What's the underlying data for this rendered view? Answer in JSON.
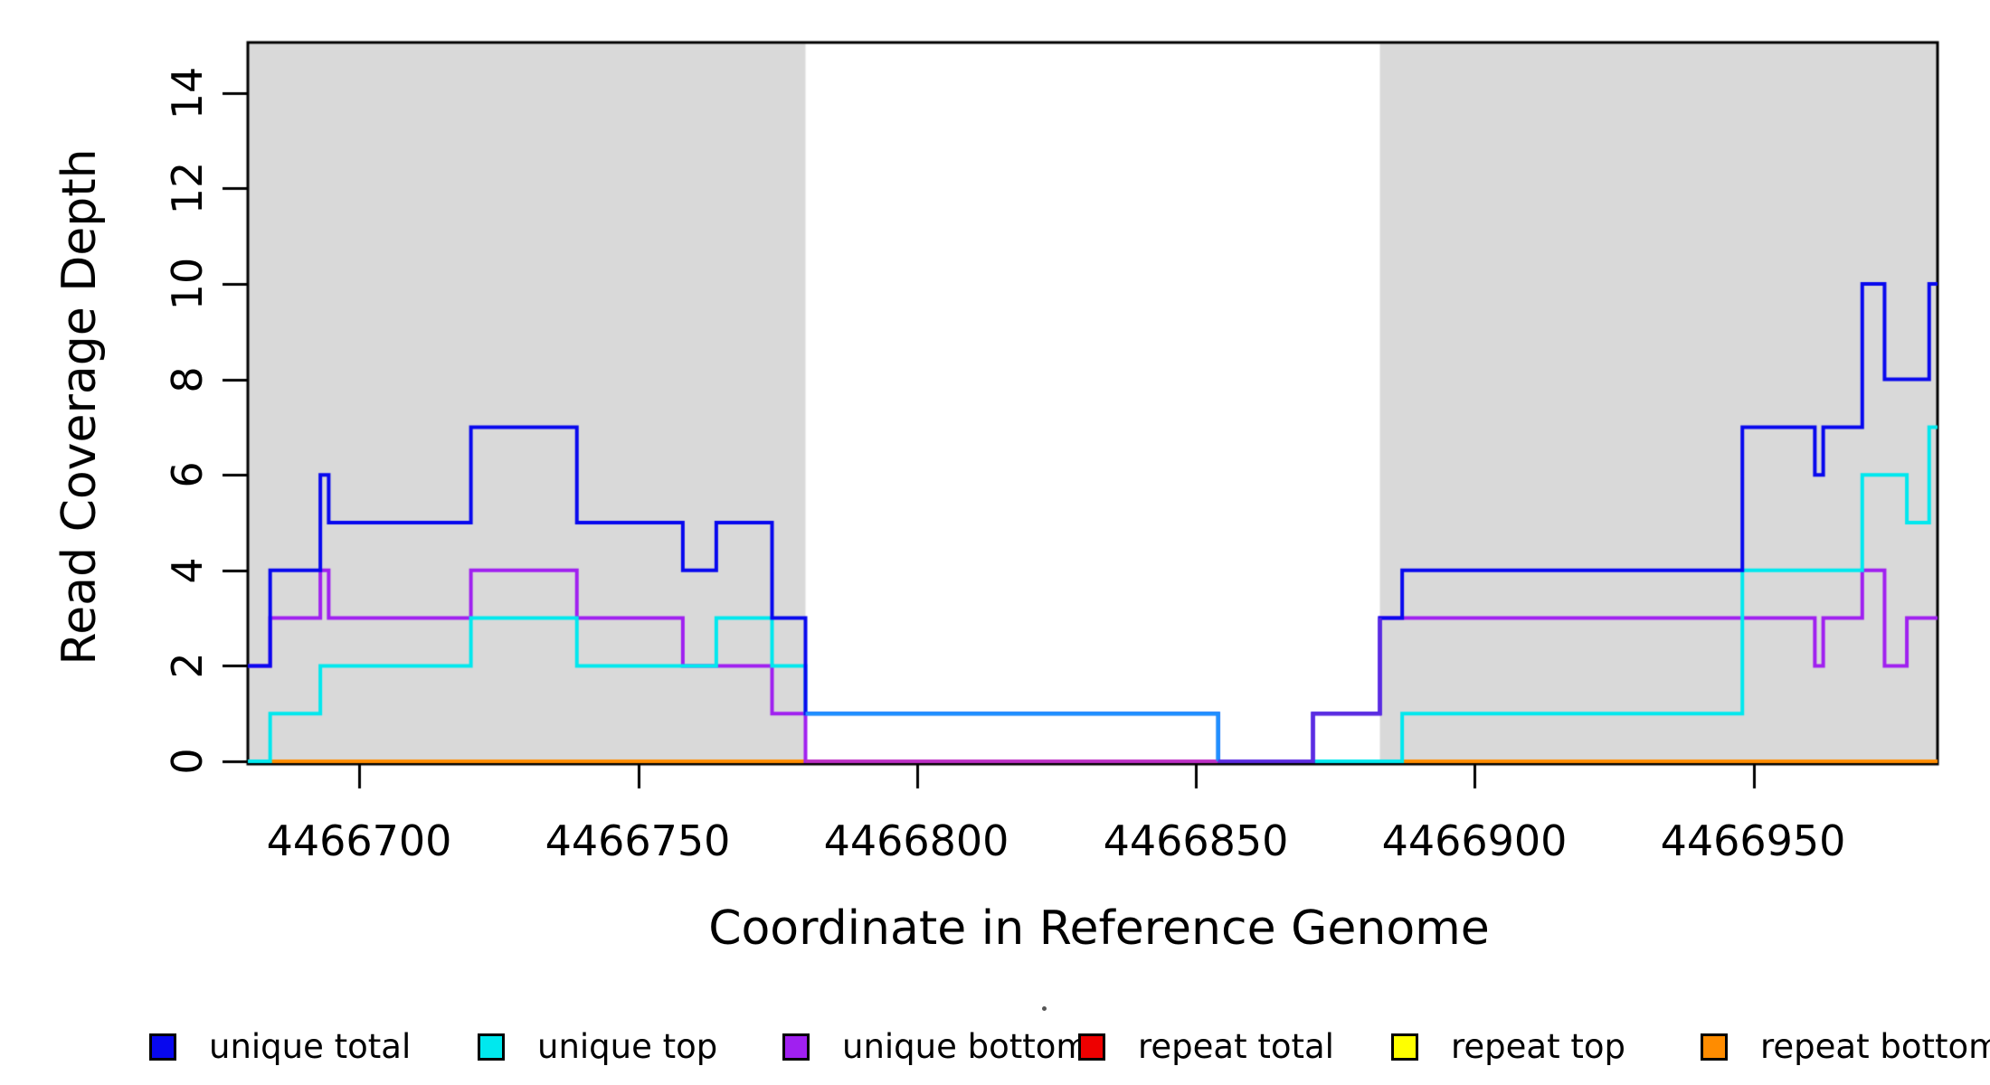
{
  "axes": {
    "x": {
      "label": "Coordinate in Reference Genome",
      "tick_labels": [
        "4466700",
        "4466750",
        "4466800",
        "4466850",
        "4466900",
        "4466950"
      ],
      "tick_values": [
        4466700,
        4466750,
        4466800,
        4466850,
        4466900,
        4466950
      ],
      "range": [
        4466680,
        4466983
      ]
    },
    "y": {
      "label": "Read Coverage Depth",
      "tick_labels": [
        "0",
        "2",
        "4",
        "6",
        "8",
        "10",
        "12",
        "14"
      ],
      "tick_values": [
        0,
        2,
        4,
        6,
        8,
        10,
        12,
        14
      ],
      "range": [
        0,
        15
      ]
    }
  },
  "chart_data": {
    "type": "line",
    "step": true,
    "title": "",
    "xlabel": "Coordinate in Reference Genome",
    "ylabel": "Read Coverage Depth",
    "xlim": [
      4466680,
      4466983
    ],
    "ylim": [
      0,
      15
    ],
    "grid": false,
    "panel": {
      "shade_color": "#D9D9D9",
      "border_color": "#000000",
      "shaded_regions": [
        {
          "x_start": 4466680,
          "x_end": 4466780
        },
        {
          "x_start": 4466883,
          "x_end": 4466983
        }
      ]
    },
    "series": [
      {
        "name": "unique total",
        "color": "#0808EE",
        "paths": [
          {
            "steps": [
              [
                4466680,
                2
              ],
              [
                4466684,
                4
              ],
              [
                4466693,
                6
              ],
              [
                4466694.5,
                5
              ],
              [
                4466720,
                7
              ],
              [
                4466739,
                5
              ],
              [
                4466758,
                4
              ],
              [
                4466764,
                5
              ],
              [
                4466774,
                3
              ],
              [
                4466780,
                1
              ],
              [
                4466854,
                0
              ],
              [
                4466871,
                1
              ],
              [
                4466883,
                3
              ],
              [
                4466887,
                4
              ],
              [
                4466948,
                7
              ],
              [
                4466961,
                6
              ],
              [
                4466962.5,
                7
              ],
              [
                4466969.5,
                10
              ],
              [
                4466973.5,
                8
              ],
              [
                4466981.5,
                10
              ]
            ],
            "x_end": 4466983
          }
        ]
      },
      {
        "name": "unique top",
        "color": "#00E8EE",
        "paths": [
          {
            "steps": [
              [
                4466680,
                0
              ],
              [
                4466684,
                1
              ],
              [
                4466693,
                2
              ],
              [
                4466720,
                3
              ],
              [
                4466739,
                2
              ],
              [
                4466764,
                3
              ],
              [
                4466774,
                2
              ],
              [
                4466780,
                1
              ],
              [
                4466854,
                0
              ],
              [
                4466887,
                1
              ],
              [
                4466948,
                4
              ],
              [
                4466969.5,
                6
              ],
              [
                4466977.5,
                5
              ],
              [
                4466981.5,
                7
              ]
            ],
            "x_end": 4466983
          }
        ]
      },
      {
        "name": "unique bottom",
        "color": "#A020F0",
        "paths": [
          {
            "steps": [
              [
                4466680,
                2
              ],
              [
                4466684,
                3
              ],
              [
                4466693,
                4
              ],
              [
                4466694.5,
                3
              ],
              [
                4466720,
                4
              ],
              [
                4466739,
                3
              ],
              [
                4466758,
                2
              ],
              [
                4466774,
                1
              ],
              [
                4466780,
                0
              ],
              [
                4466871,
                1
              ],
              [
                4466883,
                3
              ],
              [
                4466961,
                2
              ],
              [
                4466962.5,
                3
              ],
              [
                4466969.5,
                4
              ],
              [
                4466973.5,
                2
              ],
              [
                4466977.5,
                3
              ]
            ],
            "x_end": 4466983
          }
        ]
      },
      {
        "name": "repeat total",
        "color": "#EE0000",
        "paths": [
          {
            "steps": [
              [
                4466680,
                0
              ]
            ],
            "x_end": 4466983
          }
        ]
      },
      {
        "name": "repeat top",
        "color": "#FFFF00",
        "paths": [
          {
            "steps": [
              [
                4466680,
                0
              ]
            ],
            "x_end": 4466780
          },
          {
            "steps": [
              [
                4466887,
                0
              ]
            ],
            "x_end": 4466983
          }
        ]
      },
      {
        "name": "repeat bottom",
        "color": "#FF8C00",
        "paths": [
          {
            "steps": [
              [
                4466680,
                0
              ]
            ],
            "x_end": 4466780
          },
          {
            "steps": [
              [
                4466887,
                0
              ]
            ],
            "x_end": 4466983
          }
        ]
      }
    ],
    "draw_order": [
      3,
      4,
      5,
      2,
      1,
      0
    ],
    "overlap_rendering": [
      {
        "note": "unique bottom over repeat total at 0 in unshaded gap",
        "color": "#BC2FC4",
        "steps": [
          [
            4466780,
            0
          ]
        ],
        "x_end": 4466854
      },
      {
        "note": "unique total + unique top overlap at depth 1",
        "color": "#1E90FF",
        "steps": [
          [
            4466780,
            1
          ],
          [
            4466854,
            0
          ]
        ],
        "x_end": 4466854
      },
      {
        "note": "unique total + unique bottom overlap",
        "color": "#5B2BE0",
        "steps": [
          [
            4466854,
            0
          ],
          [
            4466871,
            1
          ],
          [
            4466883,
            3
          ]
        ],
        "x_end": 4466883
      }
    ]
  },
  "legend": {
    "items": [
      {
        "label": "unique total",
        "color": "#0808EE"
      },
      {
        "label": "unique top",
        "color": "#00E8EE"
      },
      {
        "label": "unique bottom",
        "color": "#A020F0"
      },
      {
        "label": "repeat total",
        "color": "#EE0000"
      },
      {
        "label": "repeat top",
        "color": "#FFFF00"
      },
      {
        "label": "repeat bottom",
        "color": "#FF8C00"
      }
    ]
  }
}
